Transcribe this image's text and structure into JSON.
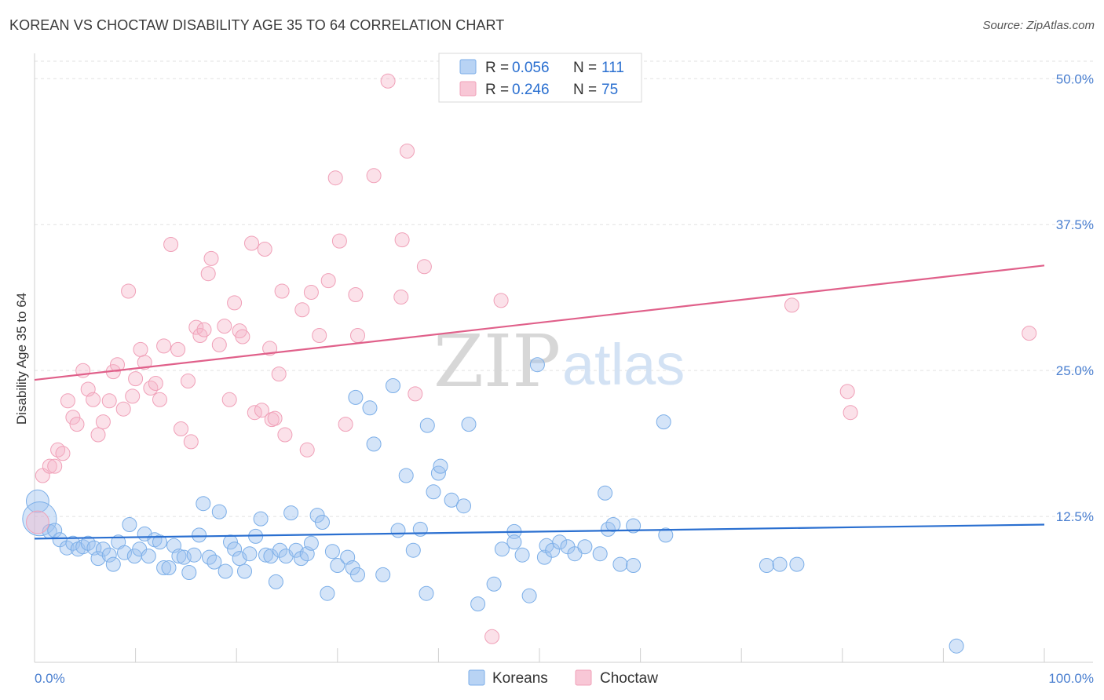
{
  "title": "KOREAN VS CHOCTAW DISABILITY AGE 35 TO 64 CORRELATION CHART",
  "source": "Source: ZipAtlas.com",
  "watermark": {
    "part1": "ZIP",
    "part2": "atlas"
  },
  "legend": {
    "rows": [
      {
        "r_label": "R = ",
        "r_value": "0.056",
        "n_label": "N = ",
        "n_value": "111",
        "color": "#a9c8f0"
      },
      {
        "r_label": "R = ",
        "r_value": "0.246",
        "n_label": "N = ",
        "n_value": "75",
        "color": "#f6b8cb"
      }
    ]
  },
  "bottom_legend": [
    "Koreans",
    "Choctaw"
  ],
  "colors": {
    "korean": "#7baee8",
    "choctaw": "#f0a0b8",
    "korean_line": "#2a6fd0",
    "choctaw_line": "#e0608a",
    "accent_text": "#2a6fd0"
  },
  "chart_data": {
    "type": "scatter",
    "title": "KOREAN VS CHOCTAW DISABILITY AGE 35 TO 64 CORRELATION CHART",
    "xlabel": "",
    "ylabel": "Disability Age 35 to 64",
    "xlim": [
      0,
      100
    ],
    "ylim": [
      0,
      51.5
    ],
    "x_tick_labels": [
      "0.0%",
      "100.0%"
    ],
    "y_ticks": [
      12.5,
      25.0,
      37.5,
      50.0
    ],
    "y_tick_labels": [
      "12.5%",
      "25.0%",
      "37.5%",
      "50.0%"
    ],
    "grid": "horizontal dashed",
    "series": [
      {
        "name": "Koreans",
        "r": 0.056,
        "n": 111,
        "trend": [
          [
            0,
            10.6
          ],
          [
            100,
            11.8
          ]
        ],
        "points": [
          [
            0.3,
            13.8,
            1.6
          ],
          [
            0.5,
            12.3,
            2.4
          ],
          [
            1.5,
            11.2,
            1.0
          ],
          [
            2.0,
            11.3,
            1.0
          ],
          [
            2.5,
            10.5,
            1.0
          ],
          [
            3.2,
            9.8,
            1.0
          ],
          [
            3.8,
            10.2,
            1.0
          ],
          [
            4.3,
            9.7,
            1.0
          ],
          [
            4.8,
            9.9,
            1.0
          ],
          [
            5.3,
            10.2,
            1.0
          ],
          [
            5.9,
            9.8,
            1.0
          ],
          [
            6.3,
            8.9,
            1.0
          ],
          [
            6.8,
            9.7,
            1.0
          ],
          [
            7.4,
            9.2,
            1.0
          ],
          [
            7.8,
            8.4,
            1.0
          ],
          [
            8.3,
            10.3,
            1.0
          ],
          [
            8.9,
            9.4,
            1.0
          ],
          [
            9.4,
            11.8,
            1.0
          ],
          [
            9.9,
            9.1,
            1.0
          ],
          [
            10.4,
            9.7,
            1.0
          ],
          [
            10.9,
            11.0,
            1.0
          ],
          [
            11.3,
            9.1,
            1.0
          ],
          [
            11.9,
            10.5,
            1.0
          ],
          [
            12.4,
            10.3,
            1.0
          ],
          [
            12.8,
            8.1,
            1.0
          ],
          [
            13.3,
            8.1,
            1.0
          ],
          [
            13.8,
            10.0,
            1.0
          ],
          [
            14.3,
            9.1,
            1.0
          ],
          [
            14.8,
            9.0,
            1.0
          ],
          [
            15.3,
            7.7,
            1.0
          ],
          [
            15.8,
            9.2,
            1.0
          ],
          [
            16.3,
            10.9,
            1.0
          ],
          [
            16.7,
            13.6,
            1.0
          ],
          [
            17.3,
            9.0,
            1.0
          ],
          [
            17.8,
            8.6,
            1.0
          ],
          [
            18.3,
            12.9,
            1.0
          ],
          [
            18.9,
            7.8,
            1.0
          ],
          [
            19.4,
            10.3,
            1.0
          ],
          [
            19.8,
            9.7,
            1.0
          ],
          [
            20.3,
            8.9,
            1.0
          ],
          [
            20.8,
            7.8,
            1.0
          ],
          [
            21.3,
            9.3,
            1.0
          ],
          [
            21.9,
            10.8,
            1.0
          ],
          [
            22.4,
            12.3,
            1.0
          ],
          [
            22.9,
            9.2,
            1.0
          ],
          [
            23.4,
            9.1,
            1.0
          ],
          [
            23.9,
            6.9,
            1.0
          ],
          [
            24.3,
            9.6,
            1.0
          ],
          [
            24.9,
            9.1,
            1.0
          ],
          [
            25.4,
            12.8,
            1.0
          ],
          [
            25.9,
            9.6,
            1.0
          ],
          [
            26.4,
            8.9,
            1.0
          ],
          [
            27.0,
            9.3,
            1.0
          ],
          [
            27.4,
            10.2,
            1.0
          ],
          [
            28.0,
            12.6,
            1.0
          ],
          [
            28.5,
            12.0,
            1.0
          ],
          [
            29.0,
            5.9,
            1.0
          ],
          [
            29.5,
            9.5,
            1.0
          ],
          [
            30.0,
            8.3,
            1.0
          ],
          [
            31.0,
            9.0,
            1.0
          ],
          [
            31.5,
            8.1,
            1.0
          ],
          [
            32.0,
            7.5,
            1.0
          ],
          [
            31.8,
            22.7,
            1.0
          ],
          [
            33.2,
            21.8,
            1.0
          ],
          [
            33.6,
            18.7,
            1.0
          ],
          [
            34.5,
            7.5,
            1.0
          ],
          [
            35.5,
            23.7,
            1.0
          ],
          [
            36.0,
            11.3,
            1.0
          ],
          [
            36.8,
            16.0,
            1.0
          ],
          [
            37.5,
            9.6,
            1.0
          ],
          [
            38.2,
            11.4,
            1.0
          ],
          [
            38.8,
            5.9,
            1.0
          ],
          [
            38.9,
            20.3,
            1.0
          ],
          [
            39.5,
            14.6,
            1.0
          ],
          [
            40.0,
            16.2,
            1.0
          ],
          [
            40.2,
            16.8,
            1.0
          ],
          [
            41.3,
            13.9,
            1.0
          ],
          [
            42.5,
            13.4,
            1.0
          ],
          [
            43.0,
            20.4,
            1.0
          ],
          [
            43.9,
            5.0,
            1.0
          ],
          [
            45.5,
            6.7,
            1.0
          ],
          [
            46.3,
            9.7,
            1.0
          ],
          [
            47.5,
            11.2,
            1.0
          ],
          [
            47.5,
            10.3,
            1.0
          ],
          [
            48.3,
            9.2,
            1.0
          ],
          [
            49.0,
            5.7,
            1.0
          ],
          [
            49.8,
            25.5,
            1.0
          ],
          [
            50.5,
            9.0,
            1.0
          ],
          [
            50.7,
            10.0,
            1.0
          ],
          [
            51.3,
            9.6,
            1.0
          ],
          [
            52.0,
            10.3,
            1.0
          ],
          [
            52.8,
            9.9,
            1.0
          ],
          [
            53.5,
            9.3,
            1.0
          ],
          [
            54.5,
            9.9,
            1.0
          ],
          [
            56.0,
            9.3,
            1.0
          ],
          [
            56.5,
            14.5,
            1.0
          ],
          [
            56.8,
            11.4,
            1.0
          ],
          [
            57.3,
            11.8,
            1.0
          ],
          [
            58.0,
            8.4,
            1.0
          ],
          [
            59.3,
            8.3,
            1.0
          ],
          [
            59.3,
            11.7,
            1.0
          ],
          [
            62.3,
            20.6,
            1.0
          ],
          [
            62.5,
            10.9,
            1.0
          ],
          [
            72.5,
            8.3,
            1.0
          ],
          [
            73.8,
            8.4,
            1.0
          ],
          [
            75.5,
            8.4,
            1.0
          ],
          [
            91.3,
            1.4,
            1.0
          ]
        ]
      },
      {
        "name": "Choctaw",
        "r": 0.246,
        "n": 75,
        "trend": [
          [
            0,
            24.2
          ],
          [
            100,
            34.0
          ]
        ],
        "points": [
          [
            0.3,
            12.0,
            1.6
          ],
          [
            0.8,
            16.0,
            1.0
          ],
          [
            1.5,
            16.8,
            1.0
          ],
          [
            2.0,
            16.8,
            1.0
          ],
          [
            2.3,
            18.2,
            1.0
          ],
          [
            2.8,
            17.9,
            1.0
          ],
          [
            3.3,
            22.4,
            1.0
          ],
          [
            3.8,
            21.0,
            1.0
          ],
          [
            4.2,
            20.4,
            1.0
          ],
          [
            4.8,
            25.0,
            1.0
          ],
          [
            5.3,
            23.4,
            1.0
          ],
          [
            5.8,
            22.5,
            1.0
          ],
          [
            6.3,
            19.5,
            1.0
          ],
          [
            6.8,
            20.6,
            1.0
          ],
          [
            7.4,
            22.4,
            1.0
          ],
          [
            7.8,
            24.9,
            1.0
          ],
          [
            8.2,
            25.5,
            1.0
          ],
          [
            8.8,
            21.7,
            1.0
          ],
          [
            9.3,
            31.8,
            1.0
          ],
          [
            9.7,
            22.8,
            1.0
          ],
          [
            10.0,
            24.3,
            1.0
          ],
          [
            10.5,
            26.8,
            1.0
          ],
          [
            10.9,
            25.7,
            1.0
          ],
          [
            11.5,
            23.5,
            1.0
          ],
          [
            12.0,
            23.9,
            1.0
          ],
          [
            12.4,
            22.5,
            1.0
          ],
          [
            12.8,
            27.1,
            1.0
          ],
          [
            13.5,
            35.8,
            1.0
          ],
          [
            14.2,
            26.8,
            1.0
          ],
          [
            14.5,
            20.0,
            1.0
          ],
          [
            15.2,
            24.1,
            1.0
          ],
          [
            15.5,
            18.9,
            1.0
          ],
          [
            16.0,
            28.7,
            1.0
          ],
          [
            16.4,
            28.0,
            1.0
          ],
          [
            16.8,
            28.5,
            1.0
          ],
          [
            17.2,
            33.3,
            1.0
          ],
          [
            17.5,
            34.6,
            1.0
          ],
          [
            18.3,
            27.2,
            1.0
          ],
          [
            18.8,
            28.8,
            1.0
          ],
          [
            19.3,
            22.5,
            1.0
          ],
          [
            19.8,
            30.8,
            1.0
          ],
          [
            20.3,
            28.4,
            1.0
          ],
          [
            20.6,
            27.9,
            1.0
          ],
          [
            21.5,
            35.9,
            1.0
          ],
          [
            21.8,
            21.4,
            1.0
          ],
          [
            22.5,
            21.6,
            1.0
          ],
          [
            22.8,
            35.4,
            1.0
          ],
          [
            23.3,
            26.9,
            1.0
          ],
          [
            23.5,
            20.8,
            1.0
          ],
          [
            23.8,
            20.9,
            1.0
          ],
          [
            24.2,
            24.7,
            1.0
          ],
          [
            24.5,
            31.8,
            1.0
          ],
          [
            24.8,
            19.5,
            1.0
          ],
          [
            26.5,
            30.2,
            1.0
          ],
          [
            27.0,
            18.2,
            1.0
          ],
          [
            27.4,
            31.7,
            1.0
          ],
          [
            28.2,
            28.0,
            1.0
          ],
          [
            29.1,
            32.7,
            1.0
          ],
          [
            29.8,
            41.5,
            1.0
          ],
          [
            30.2,
            36.1,
            1.0
          ],
          [
            30.8,
            20.4,
            1.0
          ],
          [
            31.8,
            31.5,
            1.0
          ],
          [
            32.0,
            28.0,
            1.0
          ],
          [
            33.6,
            41.7,
            1.0
          ],
          [
            35.0,
            49.8,
            1.0
          ],
          [
            36.3,
            31.3,
            1.0
          ],
          [
            36.4,
            36.2,
            1.0
          ],
          [
            36.9,
            43.8,
            1.0
          ],
          [
            37.7,
            23.0,
            1.0
          ],
          [
            38.6,
            33.9,
            1.0
          ],
          [
            45.3,
            2.2,
            1.0
          ],
          [
            46.2,
            31.0,
            1.0
          ],
          [
            75.0,
            30.6,
            1.0
          ],
          [
            80.5,
            23.2,
            1.0
          ],
          [
            80.8,
            21.4,
            1.0
          ],
          [
            98.5,
            28.2,
            1.0
          ]
        ]
      }
    ]
  }
}
